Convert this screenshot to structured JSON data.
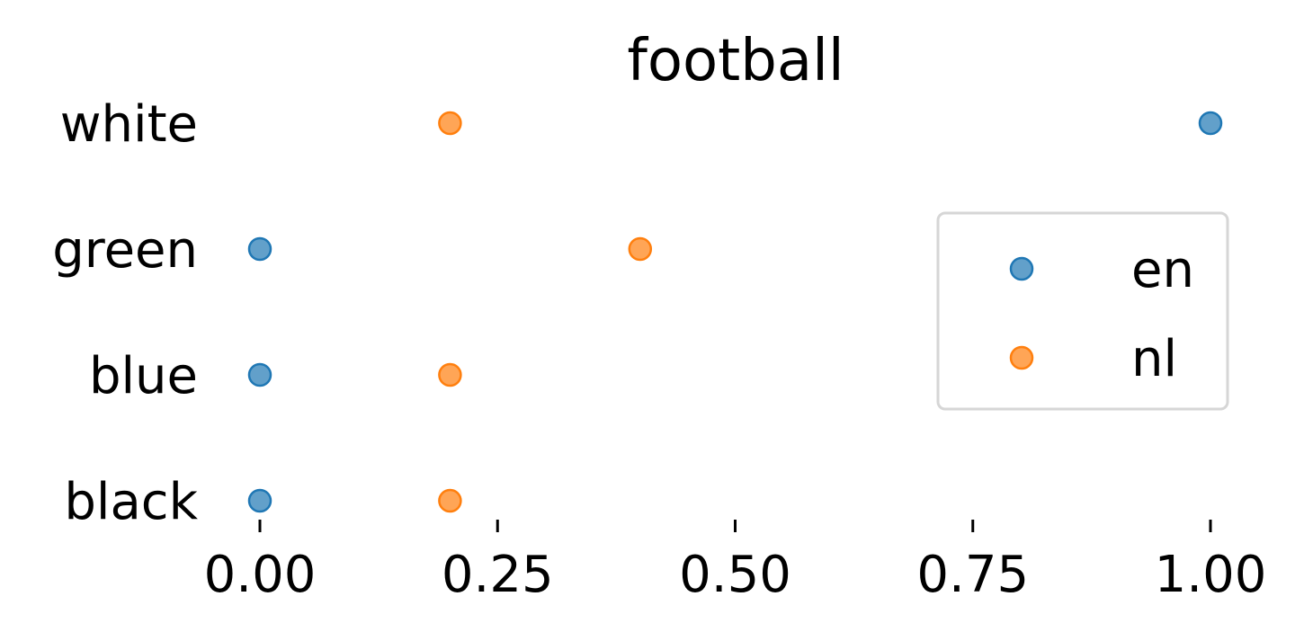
{
  "chart_data": {
    "type": "scatter",
    "title": "football",
    "xlabel": "",
    "ylabel": "",
    "categories": [
      "black",
      "blue",
      "green",
      "white"
    ],
    "xlim": [
      0,
      1
    ],
    "x_ticks": [
      "0.00",
      "0.25",
      "0.50",
      "0.75",
      "1.00"
    ],
    "x_tick_values": [
      0,
      0.25,
      0.5,
      0.75,
      1.0
    ],
    "grid": false,
    "legend_position": "right",
    "series": [
      {
        "name": "en",
        "color": "#1f77b4",
        "values": [
          0.0,
          0.0,
          0.0,
          1.0
        ]
      },
      {
        "name": "nl",
        "color": "#ff7f0e",
        "values": [
          0.2,
          0.2,
          0.4,
          0.2
        ]
      }
    ]
  }
}
